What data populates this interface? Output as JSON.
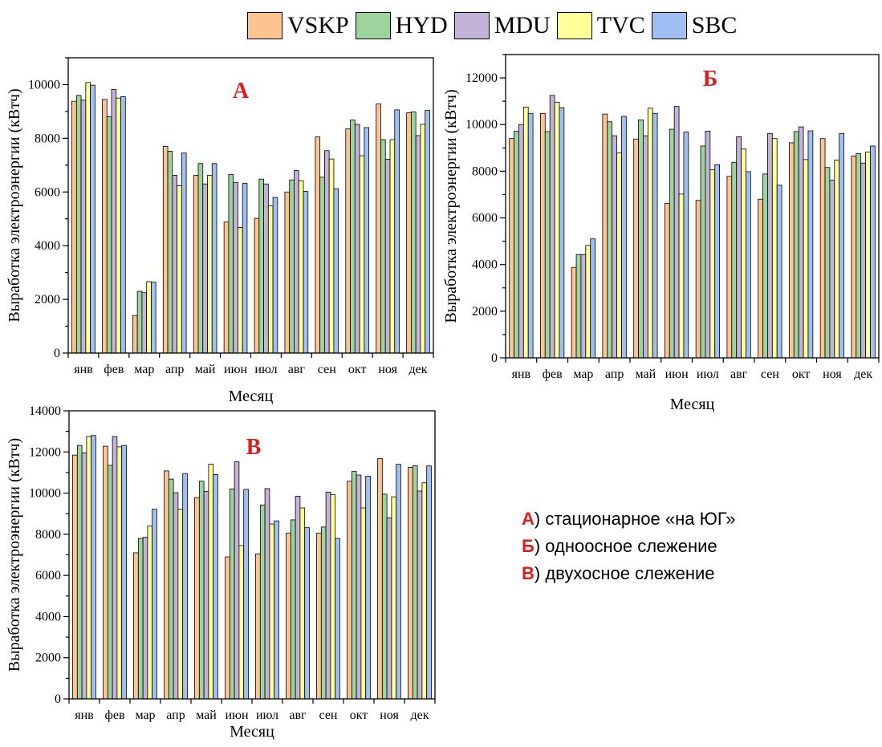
{
  "legend": [
    {
      "name": "VSKP",
      "color": "#fdc390"
    },
    {
      "name": "HYD",
      "color": "#9dd49d"
    },
    {
      "name": "MDU",
      "color": "#c3b3d9"
    },
    {
      "name": "TVC",
      "color": "#ffff99"
    },
    {
      "name": "SBC",
      "color": "#a0bff2"
    }
  ],
  "notes": [
    {
      "letter": "А",
      "text": ") стационарное «на ЮГ»"
    },
    {
      "letter": "Б",
      "text": ") одноосное слежение"
    },
    {
      "letter": "В",
      "text": ") двухосное слежение"
    }
  ],
  "chart_data": [
    {
      "type": "bar",
      "panel_label": "А",
      "xlabel": "Месяц",
      "ylabel": "Выработка электроэнергии (кВтч)",
      "ylim": [
        0,
        11000
      ],
      "yticks": [
        0,
        2000,
        4000,
        6000,
        8000,
        10000
      ],
      "categories": [
        "янв",
        "фев",
        "мар",
        "апр",
        "май",
        "июн",
        "июл",
        "авг",
        "сен",
        "окт",
        "ноя",
        "дек"
      ],
      "series": [
        {
          "name": "VSKP",
          "values": [
            9380,
            9450,
            1400,
            7700,
            6620,
            4880,
            5020,
            6000,
            8050,
            8350,
            9280,
            8950
          ]
        },
        {
          "name": "HYD",
          "values": [
            9600,
            8800,
            2300,
            7520,
            7060,
            6650,
            6480,
            6450,
            6550,
            8680,
            7950,
            8980
          ]
        },
        {
          "name": "MDU",
          "values": [
            9420,
            9820,
            2250,
            6620,
            6300,
            6350,
            6300,
            6800,
            7540,
            8520,
            7220,
            8100
          ]
        },
        {
          "name": "TVC",
          "values": [
            10080,
            9500,
            2660,
            6230,
            6620,
            4680,
            5480,
            6420,
            7230,
            7350,
            7950,
            8520
          ]
        },
        {
          "name": "SBC",
          "values": [
            9980,
            9550,
            2640,
            7450,
            7060,
            6320,
            5800,
            6020,
            6120,
            8400,
            9060,
            9040
          ]
        }
      ]
    },
    {
      "type": "bar",
      "panel_label": "Б",
      "xlabel": "Месяц",
      "ylabel": "Выработка электроэнергии (кВтч)",
      "ylim": [
        0,
        13000
      ],
      "yticks": [
        0,
        2000,
        4000,
        6000,
        8000,
        10000,
        12000
      ],
      "categories": [
        "янв",
        "фев",
        "мар",
        "апр",
        "май",
        "июн",
        "июл",
        "авг",
        "сен",
        "окт",
        "ноя",
        "дек"
      ],
      "series": [
        {
          "name": "VSKP",
          "values": [
            9400,
            10480,
            3880,
            10450,
            9380,
            6620,
            6750,
            7780,
            6800,
            9220,
            9400,
            8650
          ]
        },
        {
          "name": "HYD",
          "values": [
            9720,
            9700,
            4430,
            10120,
            10200,
            9800,
            9080,
            8380,
            7880,
            9700,
            8160,
            8750
          ]
        },
        {
          "name": "MDU",
          "values": [
            10000,
            11250,
            4430,
            9520,
            9520,
            10780,
            9720,
            9480,
            9620,
            9900,
            7620,
            8350
          ]
        },
        {
          "name": "TVC",
          "values": [
            10750,
            10960,
            4820,
            8780,
            10700,
            7020,
            8060,
            8950,
            9400,
            8500,
            8480,
            8820
          ]
        },
        {
          "name": "SBC",
          "values": [
            10480,
            10720,
            5100,
            10350,
            10480,
            9680,
            8280,
            7980,
            7400,
            9730,
            9620,
            9080
          ]
        }
      ]
    },
    {
      "type": "bar",
      "panel_label": "В",
      "xlabel": "Месяц",
      "ylabel": "Выработка электроэнергии (кВтч)",
      "ylim": [
        0,
        14000
      ],
      "yticks": [
        0,
        2000,
        4000,
        6000,
        8000,
        10000,
        12000,
        14000
      ],
      "categories": [
        "янв",
        "фев",
        "мар",
        "апр",
        "май",
        "июн",
        "июл",
        "авг",
        "сен",
        "окт",
        "ноя",
        "дек"
      ],
      "series": [
        {
          "name": "VSKP",
          "values": [
            11850,
            12280,
            7100,
            11080,
            9780,
            6900,
            7050,
            8060,
            8060,
            10580,
            11680,
            11250
          ]
        },
        {
          "name": "HYD",
          "values": [
            12320,
            11350,
            7800,
            10680,
            10580,
            10200,
            9420,
            8700,
            8350,
            11050,
            9950,
            11330
          ]
        },
        {
          "name": "MDU",
          "values": [
            11950,
            12750,
            7850,
            10020,
            10080,
            11520,
            10220,
            9850,
            10050,
            10880,
            8800,
            10100
          ]
        },
        {
          "name": "TVC",
          "values": [
            12750,
            12250,
            8400,
            9220,
            11400,
            7450,
            8500,
            9280,
            9920,
            9280,
            9820,
            10500
          ]
        },
        {
          "name": "SBC",
          "values": [
            12800,
            12320,
            9220,
            10950,
            10900,
            10180,
            8650,
            8320,
            7800,
            10820,
            11400,
            11320
          ]
        }
      ]
    }
  ]
}
